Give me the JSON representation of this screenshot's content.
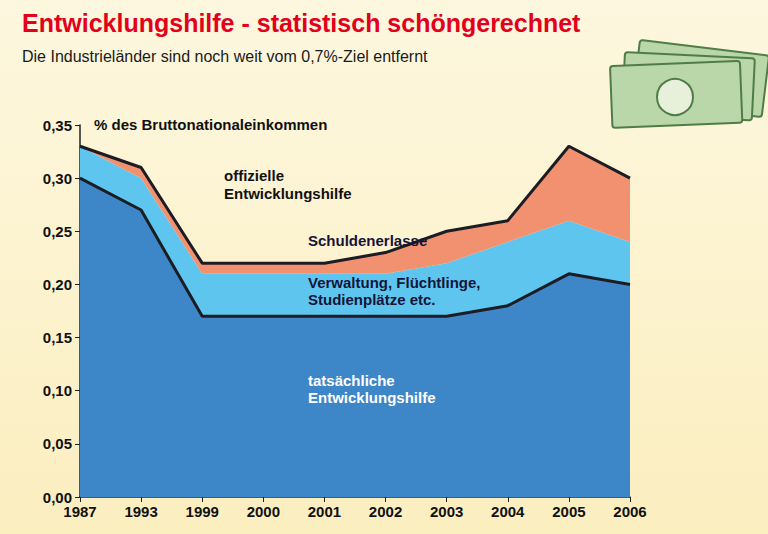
{
  "chart_data": {
    "type": "area",
    "title": "Entwicklungshilfe - statistisch schöngerechnet",
    "subtitle": "Die Industrieländer sind noch weit vom 0,7%-Ziel entfernt",
    "y_label": "% des Bruttonationaleinkommen",
    "annotations": [
      "offizielle Entwicklungshilfe"
    ],
    "categories": [
      "1987",
      "1993",
      "1999",
      "2000",
      "2001",
      "2002",
      "2003",
      "2004",
      "2005",
      "2006"
    ],
    "stacked": true,
    "grid": false,
    "series": [
      {
        "name": "tatsächliche Entwicklungshilfe",
        "color": "#3d86c8",
        "line_style": "solid",
        "values": [
          0.3,
          0.27,
          0.17,
          0.17,
          0.17,
          0.17,
          0.17,
          0.18,
          0.21,
          0.2
        ]
      },
      {
        "name": "Verwaltung, Flüchtlinge, Studienplätze etc.",
        "color": "#5ec6ee",
        "line_style": "none",
        "values": [
          0.03,
          0.03,
          0.04,
          0.04,
          0.04,
          0.04,
          0.05,
          0.06,
          0.05,
          0.04
        ]
      },
      {
        "name": "Schuldenerlasse",
        "color": "#f2916f",
        "line_style": "solid",
        "values": [
          0.0,
          0.01,
          0.01,
          0.01,
          0.01,
          0.02,
          0.03,
          0.02,
          0.07,
          0.06
        ]
      }
    ],
    "ylim": [
      0,
      0.35
    ],
    "yticks": [
      {
        "value": 0,
        "label": "0,00"
      },
      {
        "value": 0.05,
        "label": "0,05"
      },
      {
        "value": 0.1,
        "label": "0,10"
      },
      {
        "value": 0.15,
        "label": "0,15"
      },
      {
        "value": 0.2,
        "label": "0,20"
      },
      {
        "value": 0.25,
        "label": "0,25"
      },
      {
        "value": 0.3,
        "label": "0,30"
      },
      {
        "value": 0.35,
        "label": "0,35"
      }
    ]
  }
}
